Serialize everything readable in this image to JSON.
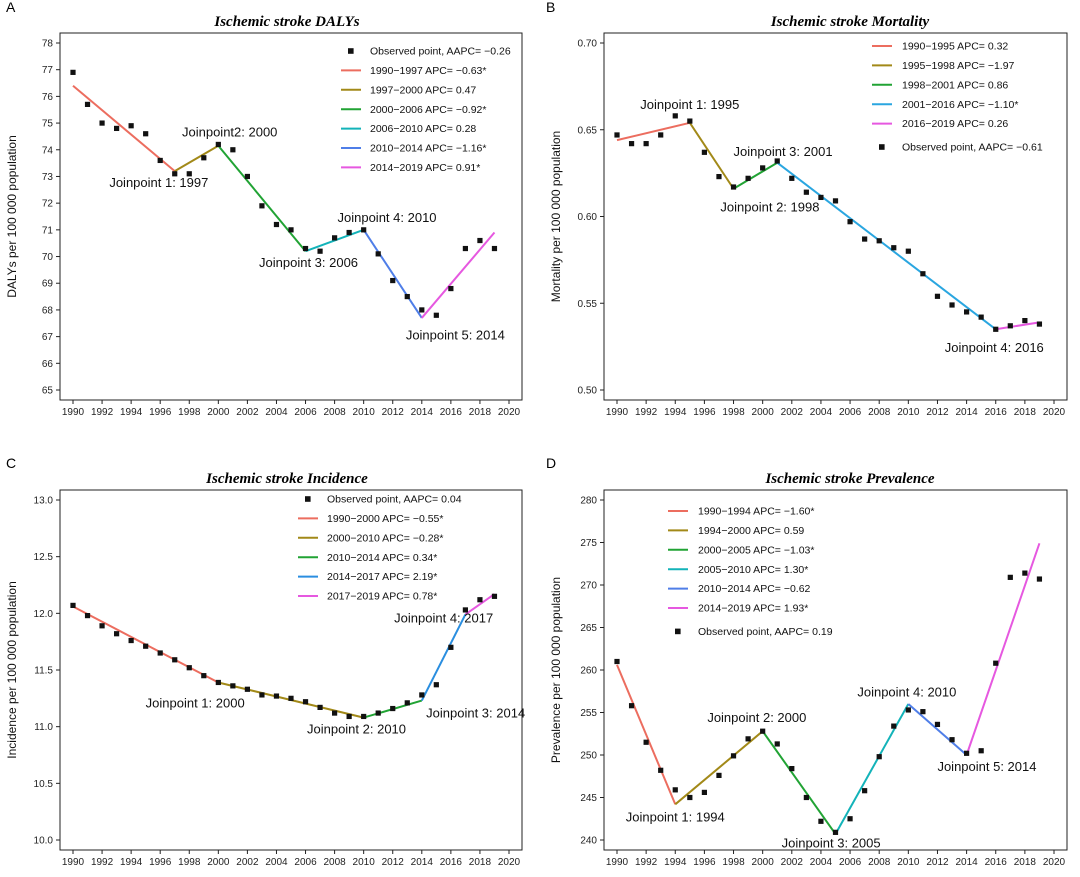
{
  "chart_data": [
    {
      "id": "A",
      "type": "line",
      "title": "Ischemic stroke DALYs",
      "ylabel": "DALYs per 100 000 population",
      "ylim": [
        65,
        78
      ],
      "yticks": [
        65,
        66,
        67,
        68,
        69,
        70,
        71,
        72,
        73,
        74,
        75,
        76,
        77,
        78
      ],
      "xlim": [
        1990,
        2020
      ],
      "xticks": [
        1990,
        1992,
        1994,
        1996,
        1998,
        2000,
        2002,
        2004,
        2006,
        2008,
        2010,
        2012,
        2014,
        2016,
        2018,
        2020
      ],
      "points_label": "Observed point, AAPC= −0.26",
      "points": [
        [
          1990,
          76.9
        ],
        [
          1991,
          75.7
        ],
        [
          1992,
          75.0
        ],
        [
          1993,
          74.8
        ],
        [
          1994,
          74.9
        ],
        [
          1995,
          74.6
        ],
        [
          1996,
          73.6
        ],
        [
          1997,
          73.1
        ],
        [
          1998,
          73.1
        ],
        [
          1999,
          73.7
        ],
        [
          2000,
          74.2
        ],
        [
          2001,
          74.0
        ],
        [
          2002,
          73.0
        ],
        [
          2003,
          71.9
        ],
        [
          2004,
          71.2
        ],
        [
          2005,
          71.0
        ],
        [
          2006,
          70.3
        ],
        [
          2007,
          70.2
        ],
        [
          2008,
          70.7
        ],
        [
          2009,
          70.9
        ],
        [
          2010,
          71.0
        ],
        [
          2011,
          70.1
        ],
        [
          2012,
          69.1
        ],
        [
          2013,
          68.5
        ],
        [
          2014,
          68.0
        ],
        [
          2015,
          67.8
        ],
        [
          2016,
          68.8
        ],
        [
          2017,
          70.3
        ],
        [
          2018,
          70.6
        ],
        [
          2019,
          70.3
        ]
      ],
      "segments": [
        {
          "label": "1990−1997 APC= −0.63*",
          "color": "#ec6d5f",
          "x": [
            1990,
            1997
          ],
          "y": [
            76.4,
            73.2
          ]
        },
        {
          "label": "1997−2000 APC= 0.47",
          "color": "#a28918",
          "x": [
            1997,
            2000
          ],
          "y": [
            73.2,
            74.15
          ]
        },
        {
          "label": "2000−2006 APC= −0.92*",
          "color": "#21a334",
          "x": [
            2000,
            2006
          ],
          "y": [
            74.15,
            70.2
          ]
        },
        {
          "label": "2006−2010 APC= 0.28",
          "color": "#13b3b9",
          "x": [
            2006,
            2010
          ],
          "y": [
            70.2,
            71.0
          ]
        },
        {
          "label": "2010−2014 APC= −1.16*",
          "color": "#4f7ee8",
          "x": [
            2010,
            2014
          ],
          "y": [
            71.0,
            67.7
          ]
        },
        {
          "label": "2014−2019 APC= 0.91*",
          "color": "#e658e0",
          "x": [
            2014,
            2019
          ],
          "y": [
            67.7,
            70.9
          ]
        }
      ],
      "legend_order": "points-first",
      "annotations": [
        {
          "text": "Joinpoint 1: 1997",
          "x": 1992.5,
          "y": 72.6
        },
        {
          "text": "Joinpoint2: 2000",
          "x": 1997.5,
          "y": 74.5
        },
        {
          "text": "Joinpoint 3: 2006",
          "x": 2002.8,
          "y": 69.6
        },
        {
          "text": "Joinpoint 4: 2010",
          "x": 2008.2,
          "y": 71.3
        },
        {
          "text": "Joinpoint 5: 2014",
          "x": 2012.9,
          "y": 66.9
        }
      ]
    },
    {
      "id": "B",
      "type": "line",
      "title": "Ischemic stroke Mortality",
      "ylabel": "Mortality per 100 000 population",
      "ylim": [
        0.5,
        0.7
      ],
      "ytick_step": 0.01,
      "yticks": [
        0.5,
        0.55,
        0.6,
        0.65,
        0.7
      ],
      "ytick_labels": [
        "0.50",
        "0.55",
        "0.60",
        "0.65",
        "0.70"
      ],
      "xlim": [
        1990,
        2020
      ],
      "xticks": [
        1990,
        1992,
        1994,
        1996,
        1998,
        2000,
        2002,
        2004,
        2006,
        2008,
        2010,
        2012,
        2014,
        2016,
        2018,
        2020
      ],
      "points_label": "Observed point, AAPC= −0.61",
      "points": [
        [
          1990,
          0.647
        ],
        [
          1991,
          0.642
        ],
        [
          1992,
          0.642
        ],
        [
          1993,
          0.647
        ],
        [
          1994,
          0.658
        ],
        [
          1995,
          0.655
        ],
        [
          1996,
          0.637
        ],
        [
          1997,
          0.623
        ],
        [
          1998,
          0.617
        ],
        [
          1999,
          0.622
        ],
        [
          2000,
          0.628
        ],
        [
          2001,
          0.632
        ],
        [
          2002,
          0.622
        ],
        [
          2003,
          0.614
        ],
        [
          2004,
          0.611
        ],
        [
          2005,
          0.609
        ],
        [
          2006,
          0.597
        ],
        [
          2007,
          0.587
        ],
        [
          2008,
          0.586
        ],
        [
          2009,
          0.582
        ],
        [
          2010,
          0.58
        ],
        [
          2011,
          0.567
        ],
        [
          2012,
          0.554
        ],
        [
          2013,
          0.549
        ],
        [
          2014,
          0.545
        ],
        [
          2015,
          0.542
        ],
        [
          2016,
          0.535
        ],
        [
          2017,
          0.537
        ],
        [
          2018,
          0.54
        ],
        [
          2019,
          0.538
        ]
      ],
      "segments": [
        {
          "label": "1990−1995 APC= 0.32",
          "color": "#ec6d5f",
          "x": [
            1990,
            1995
          ],
          "y": [
            0.644,
            0.654
          ]
        },
        {
          "label": "1995−1998 APC= −1.97",
          "color": "#a28918",
          "x": [
            1995,
            1998
          ],
          "y": [
            0.654,
            0.616
          ]
        },
        {
          "label": "1998−2001 APC= 0.86",
          "color": "#21a334",
          "x": [
            1998,
            2001
          ],
          "y": [
            0.616,
            0.631
          ]
        },
        {
          "label": "2001−2016 APC= −1.10*",
          "color": "#2aa6e0",
          "x": [
            2001,
            2016
          ],
          "y": [
            0.631,
            0.535
          ]
        },
        {
          "label": "2016−2019 APC= 0.26",
          "color": "#e658e0",
          "x": [
            2016,
            2019
          ],
          "y": [
            0.535,
            0.539
          ]
        }
      ],
      "legend_order": "points-last",
      "annotations": [
        {
          "text": "Joinpoint 1: 1995",
          "x": 1991.6,
          "y": 0.662
        },
        {
          "text": "Joinpoint 3: 2001",
          "x": 1998.0,
          "y": 0.635
        },
        {
          "text": "Joinpoint 2: 1998",
          "x": 1997.1,
          "y": 0.603
        },
        {
          "text": "Joinpoint 4: 2016",
          "x": 2012.5,
          "y": 0.522
        }
      ]
    },
    {
      "id": "C",
      "type": "line",
      "title": "Ischemic stroke Incidence",
      "ylabel": "Incidence per 100 000 population",
      "ylim": [
        10.0,
        13.0
      ],
      "ytick_step": 0.1,
      "yticks": [
        10.0,
        10.5,
        11.0,
        11.5,
        12.0,
        12.5,
        13.0
      ],
      "ytick_labels": [
        "10.0",
        "10.5",
        "11.0",
        "11.5",
        "12.0",
        "12.5",
        "13.0"
      ],
      "xlim": [
        1990,
        2020
      ],
      "xticks": [
        1990,
        1992,
        1994,
        1996,
        1998,
        2000,
        2002,
        2004,
        2006,
        2008,
        2010,
        2012,
        2014,
        2016,
        2018,
        2020
      ],
      "points_label": "Observed point, AAPC= 0.04",
      "points": [
        [
          1990,
          12.07
        ],
        [
          1991,
          11.98
        ],
        [
          1992,
          11.89
        ],
        [
          1993,
          11.82
        ],
        [
          1994,
          11.76
        ],
        [
          1995,
          11.71
        ],
        [
          1996,
          11.65
        ],
        [
          1997,
          11.59
        ],
        [
          1998,
          11.52
        ],
        [
          1999,
          11.45
        ],
        [
          2000,
          11.39
        ],
        [
          2001,
          11.36
        ],
        [
          2002,
          11.33
        ],
        [
          2003,
          11.28
        ],
        [
          2004,
          11.27
        ],
        [
          2005,
          11.25
        ],
        [
          2006,
          11.22
        ],
        [
          2007,
          11.17
        ],
        [
          2008,
          11.12
        ],
        [
          2009,
          11.09
        ],
        [
          2010,
          11.09
        ],
        [
          2011,
          11.12
        ],
        [
          2012,
          11.16
        ],
        [
          2013,
          11.21
        ],
        [
          2014,
          11.28
        ],
        [
          2015,
          11.37
        ],
        [
          2016,
          11.7
        ],
        [
          2017,
          12.03
        ],
        [
          2018,
          12.12
        ],
        [
          2019,
          12.15
        ]
      ],
      "segments": [
        {
          "label": "1990−2000 APC= −0.55*",
          "color": "#ec6d5f",
          "x": [
            1990,
            2000
          ],
          "y": [
            12.06,
            11.39
          ]
        },
        {
          "label": "2000−2010 APC= −0.28*",
          "color": "#a28918",
          "x": [
            2000,
            2010
          ],
          "y": [
            11.39,
            11.08
          ]
        },
        {
          "label": "2010−2014 APC= 0.34*",
          "color": "#21a334",
          "x": [
            2010,
            2014
          ],
          "y": [
            11.08,
            11.23
          ]
        },
        {
          "label": "2014−2017 APC= 2.19*",
          "color": "#2a8ee0",
          "x": [
            2014,
            2017
          ],
          "y": [
            11.23,
            11.99
          ]
        },
        {
          "label": "2017−2019 APC= 0.78*",
          "color": "#e658e0",
          "x": [
            2017,
            2019
          ],
          "y": [
            11.99,
            12.17
          ]
        }
      ],
      "legend_order": "points-first",
      "annotations": [
        {
          "text": "Joinpoint 1: 2000",
          "x": 1995.0,
          "y": 11.17
        },
        {
          "text": "Joinpoint 2: 2010",
          "x": 2006.1,
          "y": 10.94
        },
        {
          "text": "Joinpoint 3: 2014",
          "x": 2014.3,
          "y": 11.08
        },
        {
          "text": "Joinpoint 4: 2017",
          "x": 2012.1,
          "y": 11.92
        }
      ]
    },
    {
      "id": "D",
      "type": "line",
      "title": "Ischemic stroke Prevalence",
      "ylabel": "Prevalence per 100 000 population",
      "ylim": [
        240,
        280
      ],
      "ytick_step": 1,
      "yticks": [
        240,
        245,
        250,
        255,
        260,
        265,
        270,
        275,
        280
      ],
      "xlim": [
        1990,
        2020
      ],
      "xticks": [
        1990,
        1992,
        1994,
        1996,
        1998,
        2000,
        2002,
        2004,
        2006,
        2008,
        2010,
        2012,
        2014,
        2016,
        2018,
        2020
      ],
      "points_label": "Observed point, AAPC= 0.19",
      "points": [
        [
          1990,
          261.0
        ],
        [
          1991,
          255.8
        ],
        [
          1992,
          251.5
        ],
        [
          1993,
          248.2
        ],
        [
          1994,
          245.9
        ],
        [
          1995,
          245.0
        ],
        [
          1996,
          245.6
        ],
        [
          1997,
          247.6
        ],
        [
          1998,
          249.9
        ],
        [
          1999,
          251.9
        ],
        [
          2000,
          252.8
        ],
        [
          2001,
          251.3
        ],
        [
          2002,
          248.4
        ],
        [
          2003,
          245.0
        ],
        [
          2004,
          242.2
        ],
        [
          2005,
          240.9
        ],
        [
          2006,
          242.5
        ],
        [
          2007,
          245.8
        ],
        [
          2008,
          249.8
        ],
        [
          2009,
          253.4
        ],
        [
          2010,
          255.3
        ],
        [
          2011,
          255.1
        ],
        [
          2012,
          253.6
        ],
        [
          2013,
          251.8
        ],
        [
          2014,
          250.2
        ],
        [
          2015,
          250.5
        ],
        [
          2016,
          260.8
        ],
        [
          2017,
          270.9
        ],
        [
          2018,
          271.4
        ],
        [
          2019,
          270.7
        ]
      ],
      "segments": [
        {
          "label": "1990−1994 APC= −1.60*",
          "color": "#ec6d5f",
          "x": [
            1990,
            1994
          ],
          "y": [
            260.6,
            244.2
          ]
        },
        {
          "label": "1994−2000 APC= 0.59",
          "color": "#a28918",
          "x": [
            1994,
            2000
          ],
          "y": [
            244.2,
            252.8
          ]
        },
        {
          "label": "2000−2005 APC= −1.03*",
          "color": "#21a334",
          "x": [
            2000,
            2005
          ],
          "y": [
            252.8,
            240.7
          ]
        },
        {
          "label": "2005−2010 APC= 1.30*",
          "color": "#13b3b9",
          "x": [
            2005,
            2010
          ],
          "y": [
            240.7,
            256.0
          ]
        },
        {
          "label": "2010−2014 APC= −0.62",
          "color": "#4f7ee8",
          "x": [
            2010,
            2014
          ],
          "y": [
            256.0,
            250.0
          ]
        },
        {
          "label": "2014−2019 APC= 1.93*",
          "color": "#e658e0",
          "x": [
            2014,
            2019
          ],
          "y": [
            250.0,
            274.9
          ]
        }
      ],
      "legend_order": "points-last",
      "annotations": [
        {
          "text": "Joinpoint 1: 1994",
          "x": 1990.6,
          "y": 242.2
        },
        {
          "text": "Joinpoint 2: 2000",
          "x": 1996.2,
          "y": 253.9
        },
        {
          "text": "Joinpoint 3: 2005",
          "x": 2001.3,
          "y": 239.1
        },
        {
          "text": "Joinpoint 4: 2010",
          "x": 2006.5,
          "y": 256.9
        },
        {
          "text": "Joinpoint 5: 2014",
          "x": 2012.0,
          "y": 248.1
        }
      ]
    }
  ]
}
